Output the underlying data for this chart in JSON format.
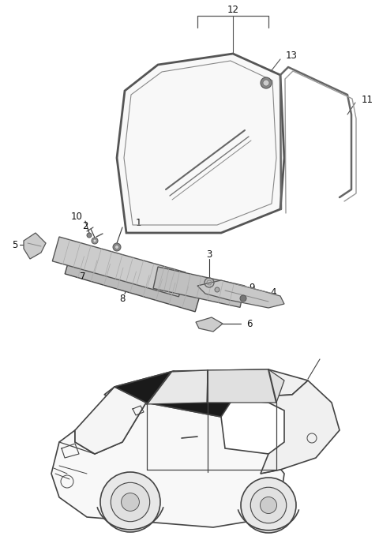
{
  "bg_color": "#ffffff",
  "fig_width": 4.8,
  "fig_height": 6.98,
  "dpi": 100,
  "lc": "#333333",
  "lc2": "#555555",
  "lc3": "#888888"
}
